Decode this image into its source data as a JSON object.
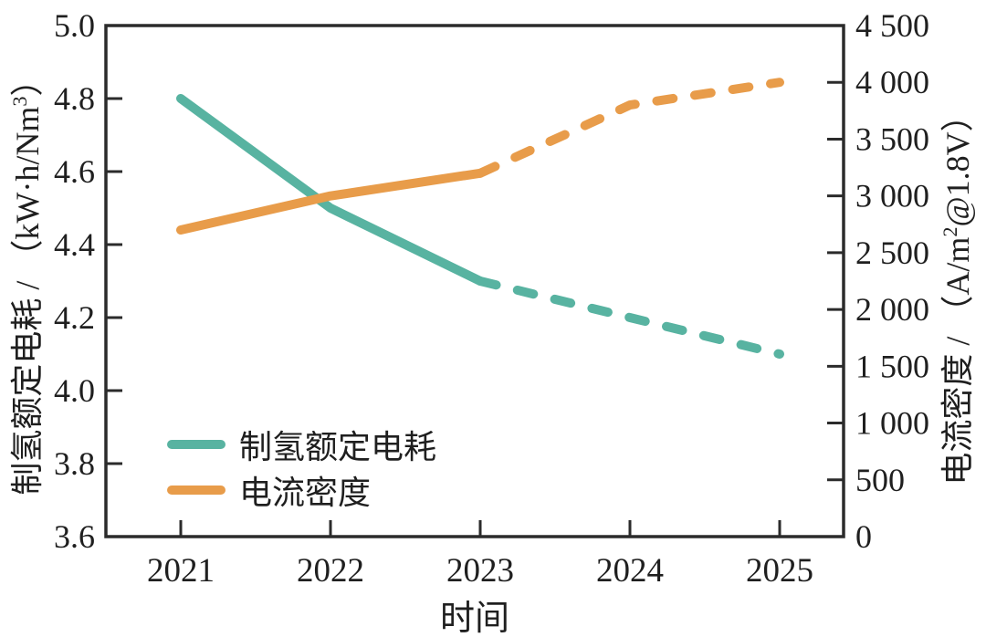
{
  "figure": {
    "background": "#ffffff",
    "axis_color": "#2b2b2b",
    "text_color": "#1f1f1f"
  },
  "legend": {
    "items": [
      {
        "label": "制氢额定电耗",
        "color": "#58b3a1"
      },
      {
        "label": "电流密度",
        "color": "#e89c4a"
      }
    ]
  },
  "chart_data": {
    "type": "line",
    "title": "",
    "xlabel": "时间",
    "x": [
      2021,
      2022,
      2023,
      2024,
      2025
    ],
    "x_tick_labels": [
      "2021",
      "2022",
      "2023",
      "2024",
      "2025"
    ],
    "grid": false,
    "legend_position": "lower-left-inside",
    "left_axis": {
      "title": "制氢额定电耗 / （kW·h/Nm³）",
      "title_parts": {
        "prefix": "制氢额定电耗 / （kW·h/Nm",
        "sup": "3",
        "suffix": "）"
      },
      "min": 3.6,
      "max": 5.0,
      "ticks": [
        3.6,
        3.8,
        4.0,
        4.2,
        4.4,
        4.6,
        4.8,
        5.0
      ],
      "tick_labels": [
        "3.6",
        "3.8",
        "4.0",
        "4.2",
        "4.4",
        "4.6",
        "4.8",
        "5.0"
      ]
    },
    "right_axis": {
      "title": "电流密度 / （A/m²@1.8V）",
      "title_parts": {
        "prefix": "电流密度 / （A/m",
        "sup": "2",
        "suffix": "@1.8V）"
      },
      "min": 0,
      "max": 4500,
      "ticks": [
        0,
        500,
        1000,
        1500,
        2000,
        2500,
        3000,
        3500,
        4000,
        4500
      ],
      "tick_labels": [
        "0",
        "500",
        "1 000",
        "1 500",
        "2 000",
        "2 500",
        "3 000",
        "3 500",
        "4 000",
        "4 500"
      ]
    },
    "series": [
      {
        "name": "制氢额定电耗",
        "axis": "left",
        "color": "#58b3a1",
        "x": [
          2021,
          2022,
          2023,
          2024,
          2025
        ],
        "values": [
          4.8,
          4.5,
          4.3,
          4.2,
          4.1
        ],
        "dash_from_index": 2,
        "style_note": "solid 2021-2023, dashed 2023-2025"
      },
      {
        "name": "电流密度",
        "axis": "right",
        "color": "#e89c4a",
        "x": [
          2021,
          2022,
          2023,
          2024,
          2025
        ],
        "values": [
          2700,
          3000,
          3200,
          3800,
          4000
        ],
        "dash_from_index": 2,
        "style_note": "solid 2021-2023, dashed 2023-2025"
      }
    ]
  }
}
